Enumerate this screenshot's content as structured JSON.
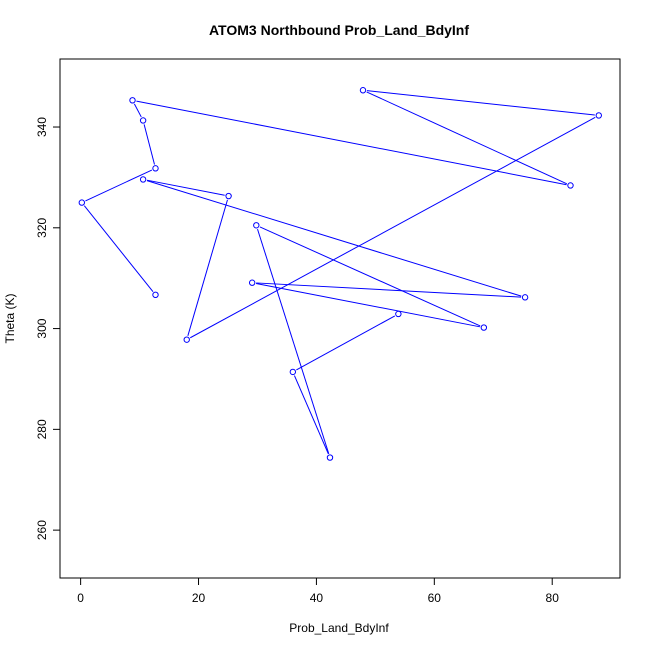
{
  "chart_data": {
    "type": "line",
    "title": "ATOM3 Northbound Prob_Land_BdyInf",
    "xlabel": "Prob_Land_BdyInf",
    "ylabel": "Theta (K)",
    "xlim": [
      -3.5,
      91.5
    ],
    "ylim": [
      250.5,
      353.5
    ],
    "x_ticks": [
      0,
      20,
      40,
      60,
      80
    ],
    "y_ticks": [
      260,
      280,
      300,
      320,
      340
    ],
    "grid": false,
    "series": [
      {
        "color": "#0000ff",
        "marker": "open-circle",
        "points": [
          {
            "x": 12.7,
            "y": 306.7
          },
          {
            "x": 0.2,
            "y": 325.0
          },
          {
            "x": 12.7,
            "y": 331.8
          },
          {
            "x": 10.6,
            "y": 341.3
          },
          {
            "x": 8.8,
            "y": 345.3
          },
          {
            "x": 83.1,
            "y": 328.4
          },
          {
            "x": 47.9,
            "y": 347.3
          },
          {
            "x": 87.9,
            "y": 342.3
          },
          {
            "x": 18.0,
            "y": 297.8
          },
          {
            "x": 25.1,
            "y": 326.3
          },
          {
            "x": 10.6,
            "y": 329.6
          },
          {
            "x": 75.4,
            "y": 306.2
          },
          {
            "x": 29.1,
            "y": 309.1
          },
          {
            "x": 68.4,
            "y": 300.2
          },
          {
            "x": 29.8,
            "y": 320.5
          },
          {
            "x": 42.3,
            "y": 274.4
          },
          {
            "x": 36.0,
            "y": 291.4
          },
          {
            "x": 53.9,
            "y": 302.9
          }
        ]
      }
    ]
  }
}
